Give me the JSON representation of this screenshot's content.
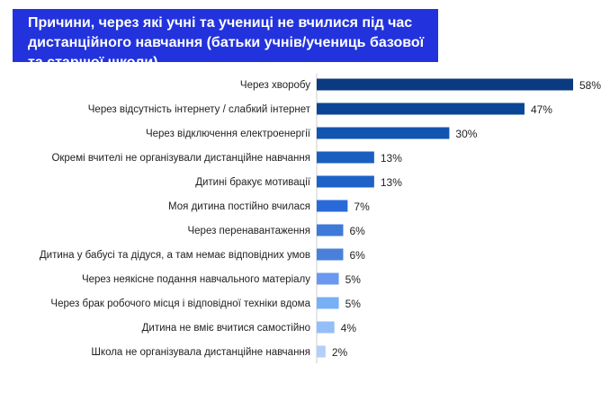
{
  "chart_data": {
    "type": "bar",
    "orientation": "horizontal",
    "title": "Причини, через які учні та учениці не вчилися під час дистанційного навчання (батьки учнів/учениць базової та старшої школи)",
    "xlabel": "",
    "ylabel": "",
    "grid": false,
    "xlim": [
      0,
      58
    ],
    "categories": [
      "Через хворобу",
      "Через відсутність інтернету / слабкий інтернет",
      "Через відключення електроенергії",
      "Окремі вчителі не організували дистанційне навчання",
      "Дитині бракує мотивації",
      "Моя дитина постійно вчилася",
      "Через перенавантаження",
      "Дитина у бабусі та дідуся, а там немає відповідних умов",
      "Через неякісне подання навчального матеріалу",
      "Через брак робочого місця і відповідної техніки вдома",
      "Дитина не вміє вчитися самостійно",
      "Школа не організувала дистанційне навчання"
    ],
    "values": [
      58,
      47,
      30,
      13,
      13,
      7,
      6,
      6,
      5,
      5,
      4,
      2
    ],
    "value_labels": [
      "58%",
      "47%",
      "30%",
      "13%",
      "13%",
      "7%",
      "6%",
      "6%",
      "5%",
      "5%",
      "4%",
      "2%"
    ],
    "colors": [
      "#0a3a80",
      "#0b4596",
      "#1155b0",
      "#1a5fc0",
      "#1e62c8",
      "#2a6ad8",
      "#3f7ad8",
      "#4a80dc",
      "#6a98f0",
      "#78b0f6",
      "#94bef8",
      "#b0d0fa"
    ],
    "title_bg": "#2233dd"
  }
}
